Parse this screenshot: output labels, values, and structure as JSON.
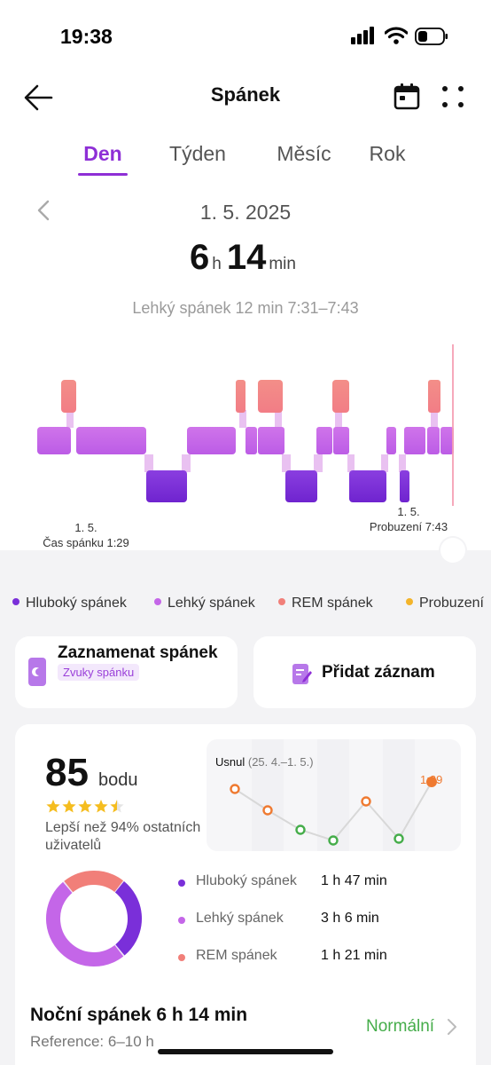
{
  "status_bar": {
    "time": "19:38"
  },
  "header": {
    "title": "Spánek",
    "icons": [
      "back-arrow-icon",
      "calendar-icon",
      "more-dots-icon"
    ]
  },
  "tabs": [
    {
      "label": "Den",
      "active": true
    },
    {
      "label": "Týden",
      "active": false
    },
    {
      "label": "Měsíc",
      "active": false
    },
    {
      "label": "Rok",
      "active": false
    }
  ],
  "day": {
    "date": "1. 5. 2025",
    "hours": "6",
    "hours_unit": "h",
    "minutes": "14",
    "minutes_unit": "min",
    "selected_segment": "Lehký spánek 12 min 7:31–7:43"
  },
  "hypnogram": {
    "start_date": "1. 5.",
    "start_label": "Čas spánku 1:29",
    "end_date": "1. 5.",
    "end_label": "Probuzení 7:43"
  },
  "colors": {
    "accent": "#8e2fd6",
    "deep": "#7a2fd9",
    "light": "#c466e8",
    "rem": "#f17f79",
    "awake": "#f3b42b",
    "good": "#45ad4a",
    "trend_late": "#ef7a31"
  },
  "legend": [
    {
      "label": "Hluboký spánek",
      "color": "#7a2fd9"
    },
    {
      "label": "Lehký spánek",
      "color": "#c466e8"
    },
    {
      "label": "REM spánek",
      "color": "#f17f79"
    },
    {
      "label": "Probuzení",
      "color": "#f3b42b"
    }
  ],
  "record_card": {
    "title": "Zaznamenat spánek",
    "badge": "Zvuky spánku"
  },
  "add_card": {
    "title": "Přidat záznam"
  },
  "score": {
    "value": "85",
    "unit": "bodu",
    "stars": 4.5,
    "compare": "Lepší než 94% ostatních uživatelů"
  },
  "trend": {
    "title": "Usnul",
    "range": "(25. 4.–1. 5.)",
    "last_value": "1:29",
    "points": [
      {
        "status": "late",
        "highlight": false
      },
      {
        "status": "late",
        "highlight": false
      },
      {
        "status": "good",
        "highlight": false
      },
      {
        "status": "good",
        "highlight": false
      },
      {
        "status": "late",
        "highlight": false
      },
      {
        "status": "good",
        "highlight": false
      },
      {
        "status": "late",
        "highlight": true
      }
    ]
  },
  "stages": [
    {
      "label": "Hluboký spánek",
      "value": "1 h 47 min",
      "color": "#7a2fd9",
      "minutes": 107
    },
    {
      "label": "Lehký spánek",
      "value": "3 h 6 min",
      "color": "#c466e8",
      "minutes": 186
    },
    {
      "label": "REM spánek",
      "value": "1 h 21 min",
      "color": "#f17f79",
      "minutes": 81
    }
  ],
  "night": {
    "title": "Noční spánek 6 h 14 min",
    "reference": "Reference: 6–10 h",
    "status": "Normální"
  }
}
